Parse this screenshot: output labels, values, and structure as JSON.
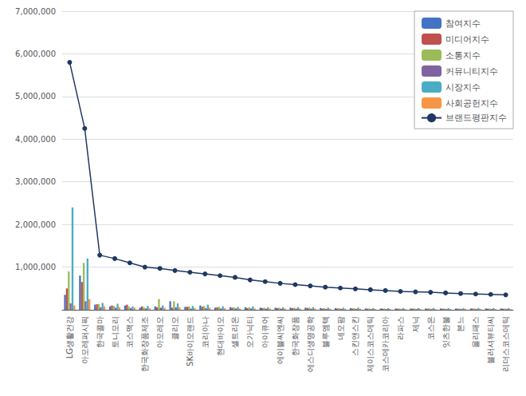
{
  "chart_data": {
    "type": "bar",
    "categories": [
      "LG생활건강",
      "아모레퍼시픽",
      "한국콜마",
      "토니모리",
      "코스맥스",
      "한국화장품제조",
      "아모레오",
      "클리오",
      "SK바이오랜드",
      "코리아나",
      "현대바이오",
      "셀트리온",
      "오가닉티",
      "아이큐어",
      "에이블씨엔씨",
      "한국화장품",
      "에스디생명공학",
      "블루엠텍",
      "네오팜",
      "스킨앤스킨",
      "제이스코스메틱",
      "코스메카코리아",
      "라파스",
      "제닉",
      "코스온",
      "잇츠한불",
      "본느",
      "올리패스",
      "블러셔뷰티씨",
      "리더스코스메틱"
    ],
    "series": [
      {
        "name": "참여지수",
        "type": "bar",
        "color": "#4472C4",
        "values": [
          350000,
          800000,
          120000,
          80000,
          100000,
          50000,
          80000,
          200000,
          70000,
          100000,
          50000,
          60000,
          60000,
          50000,
          50000,
          50000,
          50000,
          40000,
          40000,
          40000,
          30000,
          30000,
          30000,
          30000,
          30000,
          30000,
          30000,
          30000,
          30000,
          30000
        ]
      },
      {
        "name": "미디어지수",
        "type": "bar",
        "color": "#C0504D",
        "values": [
          500000,
          650000,
          130000,
          100000,
          120000,
          80000,
          60000,
          50000,
          70000,
          70000,
          60000,
          50000,
          40000,
          40000,
          40000,
          40000,
          40000,
          30000,
          30000,
          30000,
          25000,
          25000,
          25000,
          25000,
          25000,
          25000,
          25000,
          25000,
          25000,
          25000
        ]
      },
      {
        "name": "소통지수",
        "type": "bar",
        "color": "#9BBB59",
        "values": [
          900000,
          1100000,
          130000,
          90000,
          80000,
          60000,
          250000,
          200000,
          80000,
          90000,
          70000,
          60000,
          60000,
          50000,
          50000,
          50000,
          50000,
          40000,
          40000,
          40000,
          30000,
          30000,
          30000,
          30000,
          30000,
          30000,
          30000,
          30000,
          30000,
          30000
        ]
      },
      {
        "name": "커뮤니티지수",
        "type": "bar",
        "color": "#8064A2",
        "values": [
          150000,
          200000,
          60000,
          50000,
          40000,
          30000,
          50000,
          60000,
          30000,
          40000,
          30000,
          30000,
          30000,
          25000,
          25000,
          25000,
          25000,
          20000,
          20000,
          20000,
          15000,
          15000,
          15000,
          15000,
          15000,
          15000,
          15000,
          15000,
          15000,
          15000
        ]
      },
      {
        "name": "시장지수",
        "type": "bar",
        "color": "#4BACC6",
        "values": [
          2400000,
          1200000,
          160000,
          140000,
          80000,
          90000,
          100000,
          150000,
          90000,
          120000,
          80000,
          70000,
          80000,
          60000,
          60000,
          60000,
          60000,
          50000,
          50000,
          50000,
          40000,
          40000,
          40000,
          40000,
          40000,
          40000,
          40000,
          40000,
          40000,
          40000
        ]
      },
      {
        "name": "사회공헌지수",
        "type": "bar",
        "color": "#F79646",
        "values": [
          100000,
          250000,
          80000,
          60000,
          50000,
          40000,
          50000,
          60000,
          40000,
          50000,
          40000,
          30000,
          30000,
          30000,
          30000,
          30000,
          30000,
          25000,
          25000,
          25000,
          20000,
          20000,
          20000,
          20000,
          20000,
          20000,
          20000,
          20000,
          20000,
          20000
        ]
      },
      {
        "name": "브랜드평판지수",
        "type": "line",
        "color": "#1F3864",
        "marker": "circle",
        "values": [
          5800000,
          4250000,
          1280000,
          1200000,
          1100000,
          1000000,
          970000,
          920000,
          880000,
          840000,
          800000,
          760000,
          700000,
          660000,
          620000,
          590000,
          560000,
          530000,
          510000,
          490000,
          470000,
          450000,
          430000,
          420000,
          410000,
          395000,
          380000,
          370000,
          360000,
          350000
        ]
      }
    ],
    "ylim": [
      0,
      7000000
    ],
    "yticks": [
      {
        "value": 1000000,
        "label": "1,000,000"
      },
      {
        "value": 2000000,
        "label": "2,000,000"
      },
      {
        "value": 3000000,
        "label": "3,000,000"
      },
      {
        "value": 4000000,
        "label": "4,000,000"
      },
      {
        "value": 5000000,
        "label": "5,000,000"
      },
      {
        "value": 6000000,
        "label": "6,000,000"
      },
      {
        "value": 7000000,
        "label": "7,000,000"
      }
    ],
    "grid": true,
    "legend": "upper right"
  }
}
